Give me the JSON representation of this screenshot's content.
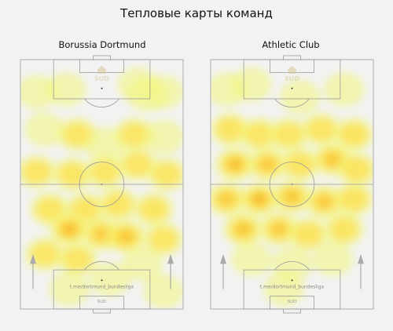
{
  "header": {
    "title": "Тепловые карты команд"
  },
  "chart_data": {
    "type": "heatmap",
    "watermark": "t.me/dortmund_bundesliga",
    "logo_text": "SUD",
    "colors": {
      "low": "#f3f57a",
      "mid": "#fde047",
      "high": "#f59e0b",
      "line": "#9a9a9a",
      "arrow": "#aaaaaa"
    },
    "attack_direction": "up",
    "teams": [
      {
        "name": "Borussia Dortmund",
        "hotspots": [
          [
            0.1,
            0.13,
            0.3
          ],
          [
            0.28,
            0.12,
            0.25
          ],
          [
            0.72,
            0.1,
            0.35
          ],
          [
            0.78,
            0.14,
            0.28
          ],
          [
            0.88,
            0.13,
            0.3
          ],
          [
            0.15,
            0.28,
            0.4
          ],
          [
            0.35,
            0.3,
            0.45
          ],
          [
            0.52,
            0.34,
            0.35
          ],
          [
            0.7,
            0.3,
            0.45
          ],
          [
            0.88,
            0.31,
            0.4
          ],
          [
            0.1,
            0.45,
            0.5
          ],
          [
            0.32,
            0.46,
            0.55
          ],
          [
            0.52,
            0.45,
            0.45
          ],
          [
            0.72,
            0.42,
            0.5
          ],
          [
            0.9,
            0.46,
            0.45
          ],
          [
            0.18,
            0.6,
            0.55
          ],
          [
            0.4,
            0.6,
            0.6
          ],
          [
            0.6,
            0.58,
            0.55
          ],
          [
            0.82,
            0.6,
            0.55
          ],
          [
            0.3,
            0.68,
            0.85
          ],
          [
            0.5,
            0.7,
            0.7
          ],
          [
            0.65,
            0.71,
            0.75
          ],
          [
            0.88,
            0.72,
            0.55
          ],
          [
            0.15,
            0.78,
            0.45
          ],
          [
            0.35,
            0.8,
            0.45
          ],
          [
            0.75,
            0.82,
            0.4
          ],
          [
            0.55,
            0.88,
            0.3
          ],
          [
            0.3,
            0.92,
            0.25
          ],
          [
            0.88,
            0.93,
            0.3
          ]
        ]
      },
      {
        "name": "Athletic Club",
        "hotspots": [
          [
            0.1,
            0.12,
            0.35
          ],
          [
            0.25,
            0.1,
            0.3
          ],
          [
            0.55,
            0.15,
            0.25
          ],
          [
            0.82,
            0.12,
            0.25
          ],
          [
            0.12,
            0.28,
            0.6
          ],
          [
            0.3,
            0.3,
            0.55
          ],
          [
            0.48,
            0.3,
            0.45
          ],
          [
            0.68,
            0.28,
            0.5
          ],
          [
            0.88,
            0.3,
            0.65
          ],
          [
            0.15,
            0.42,
            0.8
          ],
          [
            0.35,
            0.42,
            0.7
          ],
          [
            0.55,
            0.42,
            0.6
          ],
          [
            0.75,
            0.4,
            0.75
          ],
          [
            0.9,
            0.44,
            0.6
          ],
          [
            0.1,
            0.56,
            0.7
          ],
          [
            0.3,
            0.56,
            0.85
          ],
          [
            0.5,
            0.55,
            0.75
          ],
          [
            0.7,
            0.57,
            0.7
          ],
          [
            0.88,
            0.56,
            0.6
          ],
          [
            0.2,
            0.68,
            0.75
          ],
          [
            0.42,
            0.68,
            0.7
          ],
          [
            0.6,
            0.7,
            0.6
          ],
          [
            0.82,
            0.68,
            0.55
          ],
          [
            0.25,
            0.8,
            0.4
          ],
          [
            0.5,
            0.82,
            0.35
          ],
          [
            0.75,
            0.8,
            0.35
          ],
          [
            0.45,
            0.92,
            0.25
          ]
        ]
      }
    ]
  }
}
